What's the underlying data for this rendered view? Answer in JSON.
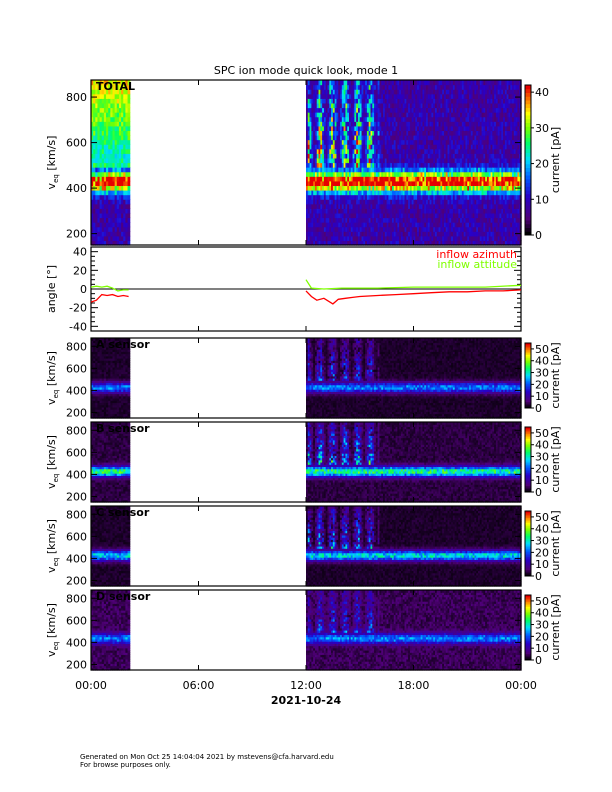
{
  "chart_data": {
    "type": "heatmap",
    "title": "SPC ion mode quick look, mode 1",
    "xlabel": "2021-10-24",
    "x_ticks": [
      "00:00",
      "06:00",
      "12:00",
      "18:00",
      "00:00"
    ],
    "x_range_hours": [
      0,
      24
    ],
    "data_gap_hours": [
      2.1,
      12.0
    ],
    "panels": [
      {
        "id": "total",
        "label": "TOTAL",
        "ylabel": "v_eq [km/s]",
        "ylabel_main": "v",
        "ylabel_sub": "eq",
        "ylabel_unit": "[km/s]",
        "yticks": [
          200,
          400,
          600,
          800
        ],
        "ylim": [
          150,
          875
        ],
        "cbar_label": "current [pA]",
        "cbar_ticks": [
          0,
          10,
          20,
          30,
          40
        ],
        "cbar_range": [
          0,
          42
        ],
        "peak_velocity": 420,
        "peak_current": 38,
        "background": 8
      },
      {
        "id": "a",
        "label": "A sensor",
        "ylabel_main": "v",
        "ylabel_sub": "eq",
        "ylabel_unit": "[km/s]",
        "yticks": [
          200,
          400,
          600,
          800
        ],
        "ylim": [
          150,
          875
        ],
        "cbar_label": "current [pA]",
        "cbar_ticks": [
          0,
          10,
          20,
          30,
          40,
          50
        ],
        "cbar_range": [
          0,
          55
        ],
        "peak_velocity": 420,
        "peak_current": 22,
        "background": 2
      },
      {
        "id": "b",
        "label": "B sensor",
        "ylabel_main": "v",
        "ylabel_sub": "eq",
        "ylabel_unit": "[km/s]",
        "yticks": [
          200,
          400,
          600,
          800
        ],
        "ylim": [
          150,
          875
        ],
        "cbar_label": "current [pA]",
        "cbar_ticks": [
          0,
          10,
          20,
          30,
          40,
          50
        ],
        "cbar_range": [
          0,
          55
        ],
        "peak_velocity": 420,
        "peak_current": 32,
        "background": 3
      },
      {
        "id": "c",
        "label": "C sensor",
        "ylabel_main": "v",
        "ylabel_sub": "eq",
        "ylabel_unit": "[km/s]",
        "yticks": [
          200,
          400,
          600,
          800
        ],
        "ylim": [
          150,
          875
        ],
        "cbar_label": "current [pA]",
        "cbar_ticks": [
          0,
          10,
          20,
          30,
          40,
          50
        ],
        "cbar_range": [
          0,
          55
        ],
        "peak_velocity": 420,
        "peak_current": 28,
        "background": 2
      },
      {
        "id": "d",
        "label": "D sensor",
        "ylabel_main": "v",
        "ylabel_sub": "eq",
        "ylabel_unit": "[km/s]",
        "yticks": [
          200,
          400,
          600,
          800
        ],
        "ylim": [
          150,
          875
        ],
        "cbar_label": "current [pA]",
        "cbar_ticks": [
          0,
          10,
          20,
          30,
          40,
          50
        ],
        "cbar_range": [
          0,
          55
        ],
        "peak_velocity": 430,
        "peak_current": 20,
        "background": 4
      }
    ],
    "angle_panel": {
      "ylabel": "angle [°]",
      "yticks": [
        -40,
        -20,
        0,
        20,
        40
      ],
      "ylim": [
        -45,
        45
      ],
      "series": [
        {
          "name": "inflow azimuth",
          "color": "#ff0000",
          "x": [
            0,
            0.3,
            0.6,
            0.9,
            1.2,
            1.5,
            1.8,
            2.1,
            12.0,
            12.3,
            12.6,
            13.0,
            13.5,
            13.8,
            14.2,
            14.6,
            15.0,
            16.0,
            17.0,
            18.0,
            19.0,
            20.0,
            21.0,
            22.0,
            23.0,
            24.0
          ],
          "y": [
            -14,
            -12,
            -6,
            -7,
            -6,
            -8,
            -7,
            -8,
            -2,
            -8,
            -12,
            -10,
            -16,
            -11,
            -10,
            -9,
            -8,
            -7,
            -6,
            -5,
            -4,
            -3,
            -3,
            -2,
            -2,
            -1
          ]
        },
        {
          "name": "inflow attitude",
          "color": "#7fff00",
          "x": [
            0,
            0.3,
            0.6,
            0.9,
            1.2,
            1.5,
            1.8,
            2.1,
            12.0,
            12.3,
            13.0,
            14.0,
            15.0,
            16.0,
            18.0,
            20.0,
            22.0,
            24.0
          ],
          "y": [
            2,
            3,
            2,
            3,
            1,
            -2,
            -1,
            -1,
            10,
            1,
            0,
            1,
            1,
            1,
            2,
            2,
            2,
            4
          ]
        }
      ]
    }
  },
  "footer": {
    "line1": "Generated on Mon Oct 25 14:04:04 2021 by mstevens@cfa.harvard.edu",
    "line2": "For browse purposes only."
  }
}
